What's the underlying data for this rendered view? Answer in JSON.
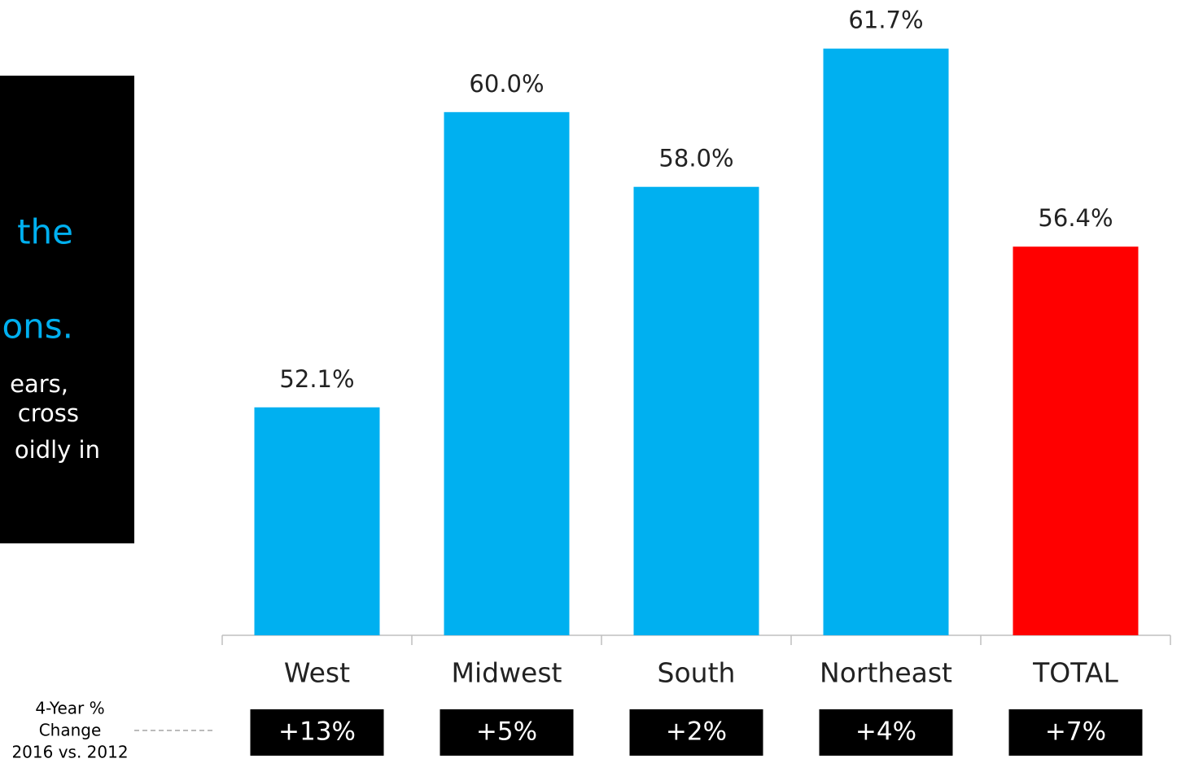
{
  "chart_data": {
    "type": "bar",
    "categories": [
      "West",
      "Midwest",
      "South",
      "Northeast",
      "TOTAL"
    ],
    "values": [
      52.1,
      60.0,
      58.0,
      61.7,
      56.4
    ],
    "value_labels": [
      "52.1%",
      "60.0%",
      "58.0%",
      "61.7%",
      "56.4%"
    ],
    "colors": [
      "#00b0f0",
      "#00b0f0",
      "#00b0f0",
      "#00b0f0",
      "#ff0000"
    ],
    "ylim": [
      46,
      63
    ],
    "change_title": [
      "4-Year %",
      "Change",
      "2016 vs. 2012"
    ],
    "changes": [
      "+13%",
      "+5%",
      "+2%",
      "+4%",
      "+7%"
    ]
  },
  "panel": {
    "highlight_lines": [
      "the",
      "ons."
    ],
    "body_lines": [
      "ears,",
      "cross",
      "oidly in"
    ]
  }
}
